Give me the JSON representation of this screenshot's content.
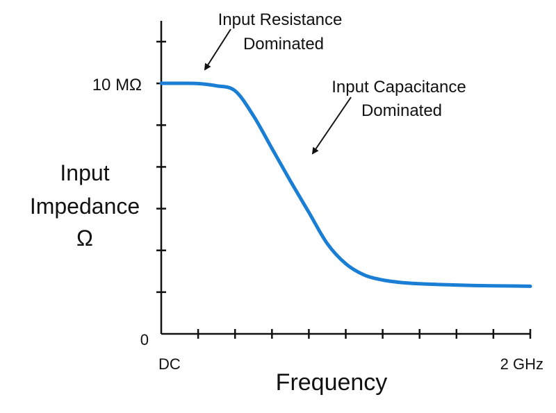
{
  "chart_data": {
    "type": "line",
    "xlabel": "Frequency",
    "ylabel_lines": [
      "Input",
      "Impedance",
      "Ω"
    ],
    "x_tick_labels": {
      "start": "DC",
      "end": "2 GHz"
    },
    "y_tick_labels": {
      "top": "10 MΩ",
      "bottom": "0"
    },
    "x_ticks": 10,
    "y_ticks": 7,
    "grid": false,
    "series": [
      {
        "color": "#1a7fd4",
        "x": [
          0.0,
          0.05,
          0.1,
          0.15,
          0.2,
          0.25,
          0.3,
          0.35,
          0.4,
          0.45,
          0.5,
          0.55,
          0.6,
          0.65,
          0.7,
          0.75,
          0.8,
          0.85,
          0.9,
          0.95,
          1.0
        ],
        "y": [
          1.0,
          1.0,
          0.999,
          0.99,
          0.97,
          0.87,
          0.74,
          0.61,
          0.485,
          0.36,
          0.28,
          0.235,
          0.215,
          0.205,
          0.2,
          0.197,
          0.195,
          0.193,
          0.192,
          0.191,
          0.19
        ]
      }
    ],
    "annotations": [
      {
        "lines": [
          "Input Resistance",
          "Dominated"
        ]
      },
      {
        "lines": [
          "Input Capacitance",
          "Dominated"
        ]
      }
    ]
  }
}
